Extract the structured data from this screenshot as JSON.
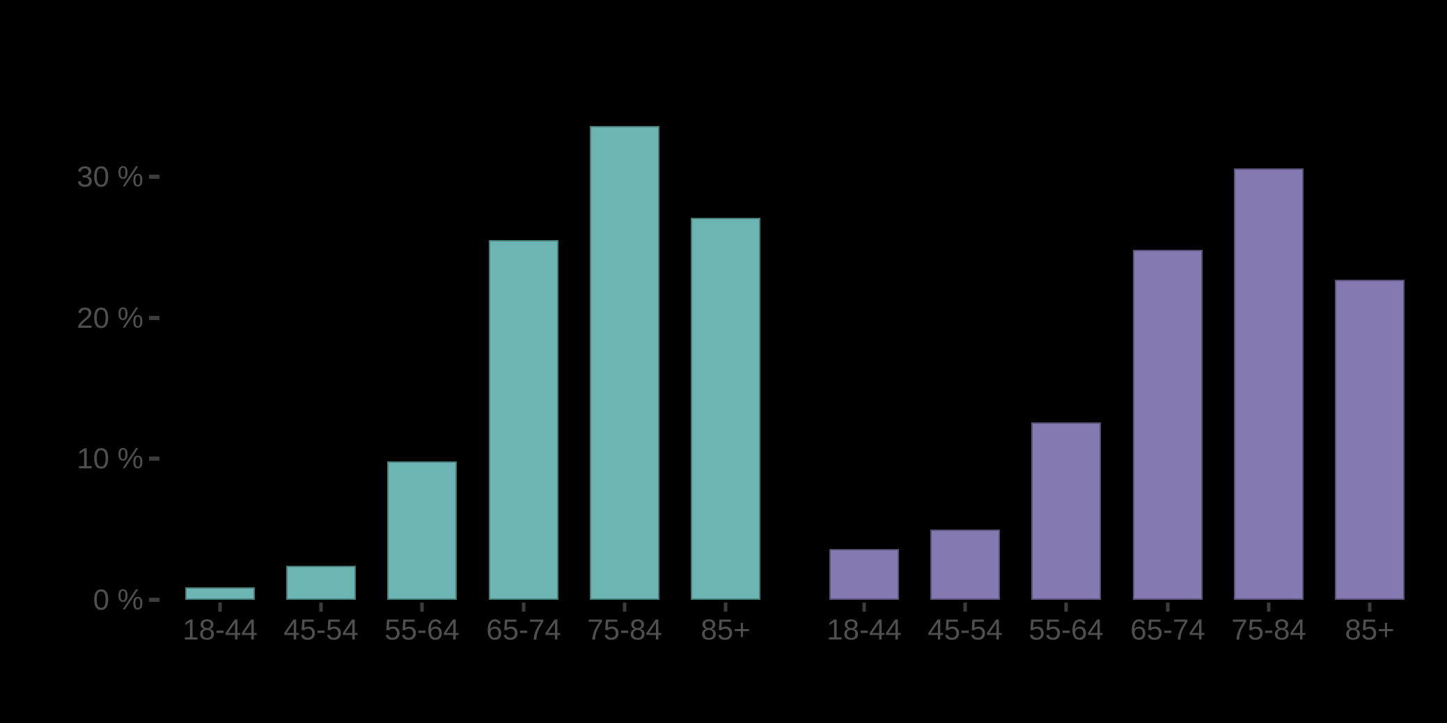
{
  "chart_data": {
    "type": "bar",
    "layout": "two side-by-side bar groups sharing a single y-axis, no title, no legend, no gridlines",
    "background_color": "#000000",
    "categories": [
      "18-44",
      "45-54",
      "55-64",
      "65-74",
      "75-84",
      "85+"
    ],
    "series": [
      {
        "name": "left-group-teal",
        "color": "#6cb5b2",
        "values": [
          0.9,
          2.4,
          9.8,
          25.5,
          33.6,
          27.1
        ]
      },
      {
        "name": "right-group-purple",
        "color": "#8579b1",
        "values": [
          3.6,
          5.0,
          12.6,
          24.8,
          30.6,
          22.7
        ]
      }
    ],
    "y_axis": {
      "unit": "%",
      "tick_values": [
        0,
        10,
        20,
        30
      ],
      "tick_labels": [
        "0 %",
        "10 %",
        "20 %",
        "30 %"
      ],
      "range": [
        0,
        35
      ],
      "tick_label_color": "#4f4f4f",
      "tick_mark_color": "#3c3c3c"
    },
    "x_axis": {
      "tick_label_color": "#4f4f4f",
      "tick_mark_color": "#3c3c3c"
    },
    "grid": false,
    "legend_position": "none"
  }
}
